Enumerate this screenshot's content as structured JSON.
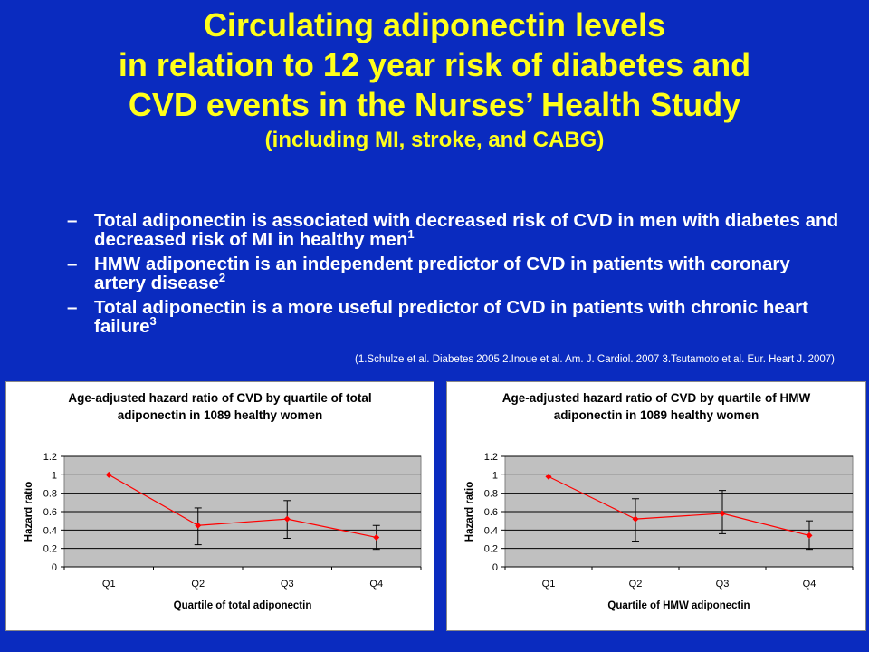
{
  "slide": {
    "title_lines": [
      "Circulating adiponectin levels",
      "in relation to 12 year risk of diabetes and",
      "CVD events in the Nurses’ Health Study"
    ],
    "subtitle": "(including MI, stroke, and CABG)",
    "bullets": [
      {
        "dash": "–",
        "text": "Total adiponectin is associated with decreased risk of CVD in men with diabetes and decreased risk of MI in healthy men",
        "sup": "1"
      },
      {
        "dash": "–",
        "text": "HMW adiponectin is an independent predictor of CVD in patients with coronary artery disease",
        "sup": "2"
      },
      {
        "dash": "–",
        "text": "Total adiponectin is a more useful predictor of CVD in patients with chronic heart failure",
        "sup": "3"
      }
    ],
    "references": "(1.Schulze et al. Diabetes 2005 2.Inoue et al. Am. J. Cardiol. 2007 3.Tsutamoto et al. Eur. Heart J. 2007)"
  },
  "colors": {
    "background": "#0a2bbf",
    "title": "#ffff1a",
    "plot_area": "#c0c0c0",
    "series": "#ff0000"
  },
  "chart_data": [
    {
      "type": "line",
      "title": "Age-adjusted hazard ratio of CVD by quartile of total adiponectin in 1089 healthy women",
      "title_lines": [
        "Age-adjusted hazard ratio of CVD by quartile of total",
        "adiponectin in 1089 healthy women"
      ],
      "xlabel": "Quartile of total adiponectin",
      "ylabel": "Hazard ratio",
      "categories": [
        "Q1",
        "Q2",
        "Q3",
        "Q4"
      ],
      "values": [
        1.0,
        0.45,
        0.52,
        0.32
      ],
      "error_low": [
        1.0,
        0.24,
        0.31,
        0.19
      ],
      "error_high": [
        1.0,
        0.64,
        0.72,
        0.45
      ],
      "ylim": [
        0,
        1.2
      ],
      "yticks": [
        "0",
        "0.2",
        "0.4",
        "0.6",
        "0.8",
        "1",
        "1.2"
      ],
      "grid": true,
      "legend": "none"
    },
    {
      "type": "line",
      "title": "Age-adjusted hazard ratio of CVD by quartile of HMW adiponectin in 1089 healthy women",
      "title_lines": [
        "Age-adjusted hazard ratio of CVD by quartile of HMW",
        "adiponectin in 1089 healthy women"
      ],
      "xlabel": "Quartile of HMW adiponectin",
      "ylabel": "Hazard ratio",
      "categories": [
        "Q1",
        "Q2",
        "Q3",
        "Q4"
      ],
      "values": [
        0.98,
        0.52,
        0.58,
        0.34
      ],
      "error_low": [
        0.98,
        0.28,
        0.36,
        0.19
      ],
      "error_high": [
        0.98,
        0.74,
        0.83,
        0.5
      ],
      "ylim": [
        0,
        1.2
      ],
      "yticks": [
        "0",
        "0.2",
        "0.4",
        "0.6",
        "0.8",
        "1",
        "1.2"
      ],
      "grid": true,
      "legend": "none"
    }
  ]
}
